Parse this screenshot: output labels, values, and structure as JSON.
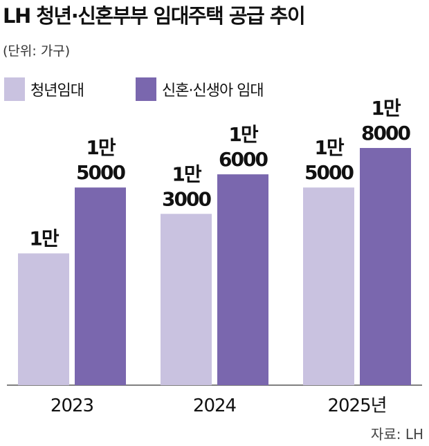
{
  "chart_data": {
    "type": "bar",
    "title": "LH 청년·신혼부부 임대주택 공급 추이",
    "subtitle": "(단위: 가구)",
    "categories": [
      "2023",
      "2024",
      "2025년"
    ],
    "series": [
      {
        "name": "청년임대",
        "color": "#c9c2e0",
        "values": [
          10000,
          13000,
          15000
        ],
        "value_labels": [
          "1만",
          "1만 3000",
          "1만 5000"
        ]
      },
      {
        "name": "신혼·신생아 임대",
        "color": "#7a67ae",
        "values": [
          15000,
          16000,
          18000
        ],
        "value_labels": [
          "1만 5000",
          "1만 6000",
          "1만 8000"
        ]
      }
    ],
    "source": "자료: LH"
  }
}
